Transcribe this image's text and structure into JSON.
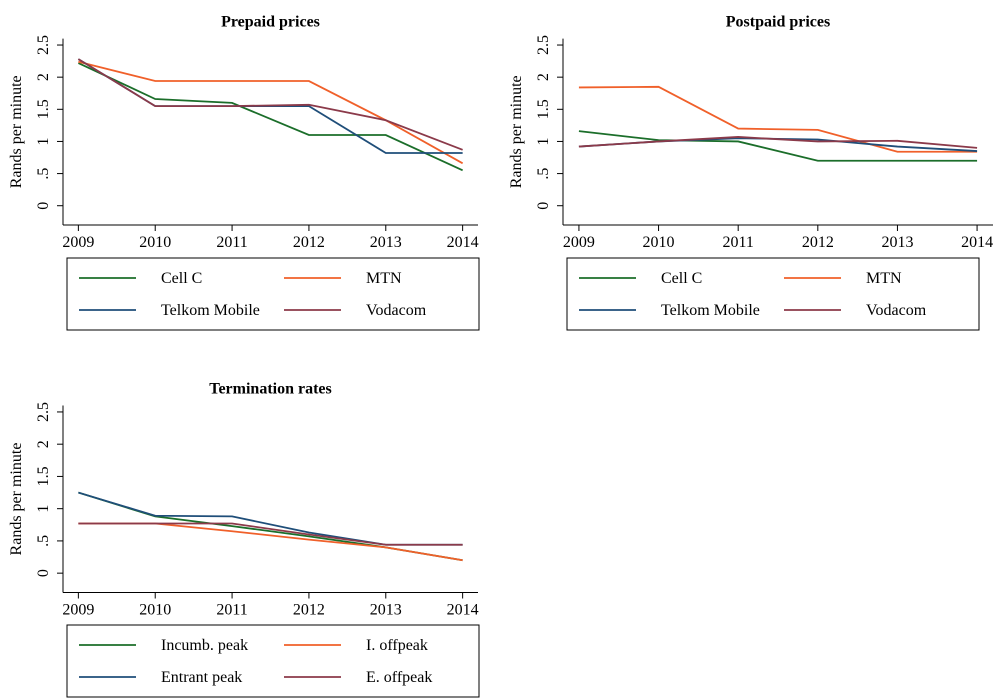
{
  "chart_data": [
    {
      "type": "line",
      "title": "Prepaid prices",
      "y_label": "Rands per minute",
      "x": [
        2009,
        2010,
        2011,
        2012,
        2013,
        2014
      ],
      "xlim": [
        2008.8,
        2014.2
      ],
      "xticks": [
        2009,
        2010,
        2011,
        2012,
        2013,
        2014
      ],
      "ylim": [
        -0.3,
        2.6
      ],
      "yticks": [
        0,
        {
          "value": 0.5,
          "label": ".5"
        },
        1,
        1.5,
        2,
        2.5
      ],
      "series": [
        {
          "name": "Cell C",
          "color": "#1b6e2a",
          "values": [
            2.22,
            1.66,
            1.6,
            1.1,
            1.1,
            0.55
          ]
        },
        {
          "name": "MTN",
          "color": "#f0602a",
          "values": [
            2.24,
            1.94,
            1.94,
            1.94,
            1.33,
            0.66
          ]
        },
        {
          "name": "Telkom Mobile",
          "color": "#1f4e79",
          "values": [
            2.28,
            1.55,
            1.55,
            1.55,
            0.82,
            0.82
          ]
        },
        {
          "name": "Vodacom",
          "color": "#8b3a4a",
          "values": [
            2.28,
            1.55,
            1.55,
            1.57,
            1.33,
            0.87
          ]
        }
      ]
    },
    {
      "type": "line",
      "title": "Postpaid prices",
      "y_label": "Rands per minute",
      "x": [
        2009,
        2010,
        2011,
        2012,
        2013,
        2014
      ],
      "xlim": [
        2008.8,
        2014.2
      ],
      "xticks": [
        2009,
        2010,
        2011,
        2012,
        2013,
        2014
      ],
      "ylim": [
        -0.3,
        2.6
      ],
      "yticks": [
        0,
        {
          "value": 0.5,
          "label": ".5"
        },
        1,
        1.5,
        2,
        2.5
      ],
      "series": [
        {
          "name": "Cell C",
          "color": "#1b6e2a",
          "values": [
            1.16,
            1.02,
            1.0,
            0.7,
            0.7,
            0.7
          ]
        },
        {
          "name": "MTN",
          "color": "#f0602a",
          "values": [
            1.84,
            1.85,
            1.2,
            1.18,
            0.84,
            0.84
          ]
        },
        {
          "name": "Telkom Mobile",
          "color": "#1f4e79",
          "values": [
            0.92,
            1.0,
            1.05,
            1.03,
            0.92,
            0.85
          ]
        },
        {
          "name": "Vodacom",
          "color": "#8b3a4a",
          "values": [
            0.92,
            1.0,
            1.07,
            1.0,
            1.01,
            0.9
          ]
        }
      ]
    },
    {
      "type": "line",
      "title": "Termination rates",
      "y_label": "Rands per minute",
      "x": [
        2009,
        2010,
        2011,
        2012,
        2013,
        2014
      ],
      "xlim": [
        2008.8,
        2014.2
      ],
      "xticks": [
        2009,
        2010,
        2011,
        2012,
        2013,
        2014
      ],
      "ylim": [
        -0.3,
        2.6
      ],
      "yticks": [
        0,
        {
          "value": 0.5,
          "label": ".5"
        },
        1,
        1.5,
        2,
        2.5
      ],
      "series": [
        {
          "name": "Incumb. peak",
          "color": "#1b6e2a",
          "values": [
            1.25,
            0.88,
            0.73,
            0.57,
            0.4,
            0.2
          ]
        },
        {
          "name": "I. offpeak",
          "color": "#f0602a",
          "values": [
            0.77,
            0.77,
            0.65,
            0.52,
            0.4,
            0.2
          ]
        },
        {
          "name": "Entrant peak",
          "color": "#1f4e79",
          "values": [
            1.25,
            0.89,
            0.88,
            0.63,
            0.44,
            0.44
          ]
        },
        {
          "name": "E. offpeak",
          "color": "#8b3a4a",
          "values": [
            0.77,
            0.77,
            0.77,
            0.6,
            0.44,
            0.44
          ]
        }
      ]
    }
  ]
}
